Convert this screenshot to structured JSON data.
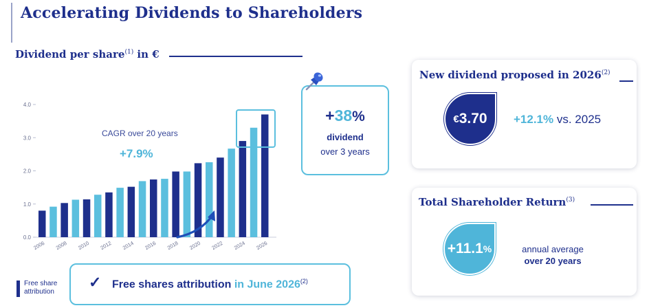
{
  "page": {
    "title": "Accelerating Dividends to Shareholders"
  },
  "section": {
    "heading": "Dividend per share",
    "heading_sup": "(1)",
    "heading_suffix": " in €"
  },
  "chart_data": {
    "type": "bar",
    "title": "",
    "xlabel": "",
    "ylabel": "",
    "ylim": [
      0,
      4.0
    ],
    "yticks": [
      "0.0",
      "1.0",
      "2.0",
      "3.0",
      "4.0"
    ],
    "xtick_labels": [
      "2006",
      "2008",
      "2010",
      "2012",
      "2014",
      "2016",
      "2018",
      "2020",
      "2022",
      "2024",
      "2026"
    ],
    "categories": [
      "2006",
      "2007",
      "2008",
      "2009",
      "2010",
      "2011",
      "2012",
      "2013",
      "2014",
      "2015",
      "2016",
      "2017",
      "2018",
      "2019",
      "2020",
      "2021",
      "2022",
      "2023",
      "2024",
      "2025",
      "2026"
    ],
    "values": [
      0.8,
      0.92,
      1.03,
      1.13,
      1.14,
      1.28,
      1.35,
      1.49,
      1.52,
      1.69,
      1.74,
      1.76,
      1.98,
      1.98,
      2.23,
      2.26,
      2.4,
      2.67,
      2.9,
      3.3,
      3.7
    ],
    "free_share_attribution": [
      true,
      false,
      true,
      false,
      true,
      false,
      true,
      false,
      true,
      false,
      true,
      false,
      true,
      false,
      true,
      false,
      true,
      false,
      true,
      false,
      true
    ],
    "colors": {
      "free_share": "#1e2f8c",
      "regular": "#5bbfde"
    },
    "grid": false,
    "legend": {
      "position": "bottom-left",
      "label": "Free share attribution"
    }
  },
  "cagr": {
    "label": "CAGR over 20 years",
    "value": "+7.9%"
  },
  "callout": {
    "plus": "+",
    "number": "38",
    "percent": "%",
    "label": "dividend",
    "sub": "over 3 years",
    "icon": "pushpin-icon"
  },
  "free_shares": {
    "text": "Free shares attribution",
    "highlight": " in June 2026",
    "sup": "(2)",
    "icon": "checkmark-icon"
  },
  "card_dividend": {
    "title": "New dividend proposed in 2026",
    "title_sup": "(2)",
    "currency": "€",
    "amount": "3.70",
    "change": "+12.1%",
    "change_suffix": " vs. 2025"
  },
  "card_tsr": {
    "title": "Total Shareholder Return",
    "title_sup": "(3)",
    "value": "+11.1",
    "percent": "%",
    "line1": "annual average",
    "line2": "over 20 years"
  },
  "colors": {
    "primary": "#1e2f8c",
    "accent": "#4fb5d9"
  }
}
